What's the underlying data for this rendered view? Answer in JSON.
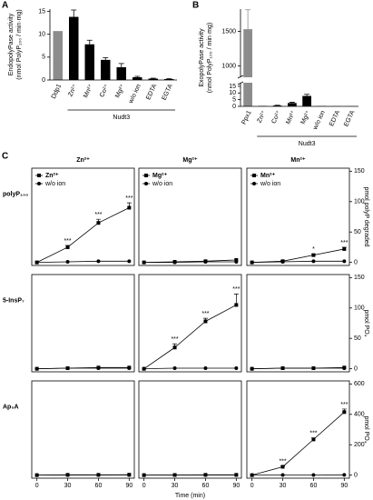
{
  "chart_data": [
    {
      "type": "bar",
      "panel": "A",
      "ylabel": [
        "EndopolyPase activity",
        "(nmol PolyP₁₀₀ / min·mg)"
      ],
      "categories": [
        "Ddp1",
        "Zn²⁺",
        "Mn²⁺",
        "Co²⁺",
        "Mg²⁺",
        "w/o ion",
        "EDTA",
        "EGTA"
      ],
      "values": [
        10.7,
        13.8,
        7.8,
        4.4,
        2.8,
        0.6,
        0.3,
        0.2
      ],
      "errors": [
        null,
        1.5,
        0.9,
        0.5,
        0.8,
        0.2,
        0.1,
        0.1
      ],
      "colors": [
        "#8c8c8c",
        "#000000",
        "#000000",
        "#000000",
        "#000000",
        "#000000",
        "#000000",
        "#000000"
      ],
      "group": {
        "label": "Nudt3",
        "from": 1,
        "to": 7
      },
      "ylim": [
        0,
        15.5
      ],
      "yticks": [
        0,
        5,
        10,
        15
      ]
    },
    {
      "type": "broken-bar",
      "panel": "B",
      "ylabel": [
        "ExopolyPase activity",
        "(nmol PolyP₁₀₀ / min·mg)"
      ],
      "categories": [
        "Ppx1",
        "Zn²⁺",
        "Co²⁺",
        "Mn²⁺",
        "Mg²⁺",
        "w/o ion",
        "EDTA",
        "EGTA"
      ],
      "values": [
        1530,
        0.3,
        0.6,
        2.5,
        7.8,
        0.2,
        0.1,
        0.1
      ],
      "errors": [
        280,
        null,
        0.2,
        0.6,
        1.2,
        null,
        null,
        null
      ],
      "colors": [
        "#8c8c8c",
        "#000000",
        "#000000",
        "#000000",
        "#000000",
        "#000000",
        "#000000",
        "#000000"
      ],
      "group": {
        "label": "Nudt3",
        "from": 1,
        "to": 7
      },
      "ylim": [
        0,
        1820
      ],
      "axis_break": [
        17,
        850
      ],
      "yticks": [
        0,
        5,
        10,
        15,
        1000,
        1500
      ]
    },
    {
      "type": "line",
      "panel": "C",
      "row": 0,
      "col": 0,
      "title": "Zn²⁺",
      "row_label": "polyP₁₀₀",
      "legend": true,
      "x": [
        0,
        30,
        60,
        90
      ],
      "xlim": [
        -5,
        95
      ],
      "ylim": [
        -5,
        155
      ],
      "series": [
        {
          "name": "Zn²⁺",
          "color": "#000000",
          "marker": "square",
          "values": [
            0,
            25,
            65,
            90
          ],
          "errors": [
            0,
            3,
            6,
            8
          ],
          "significance": [
            null,
            "***",
            "***",
            "***"
          ]
        },
        {
          "name": "w/o ion",
          "color": "#000000",
          "marker": "circle",
          "values": [
            0,
            1,
            2,
            2
          ]
        }
      ]
    },
    {
      "type": "line",
      "row": 0,
      "col": 1,
      "title": "Mg²⁺",
      "legend": true,
      "x": [
        0,
        30,
        60,
        90
      ],
      "xlim": [
        -5,
        95
      ],
      "ylim": [
        -5,
        155
      ],
      "series": [
        {
          "name": "Mg²⁺",
          "color": "#000000",
          "marker": "square",
          "values": [
            0,
            1,
            2,
            4
          ]
        },
        {
          "name": "w/o ion",
          "color": "#000000",
          "marker": "circle",
          "values": [
            0,
            0,
            1,
            1
          ]
        }
      ]
    },
    {
      "type": "line",
      "row": 0,
      "col": 2,
      "title": "Mn²⁺",
      "legend": true,
      "ylabel": "pmol polyP degraded",
      "x": [
        0,
        30,
        60,
        90
      ],
      "xlim": [
        -5,
        95
      ],
      "ylim": [
        -5,
        155
      ],
      "yticks": [
        0,
        50,
        100,
        150
      ],
      "series": [
        {
          "name": "Mn²⁺",
          "color": "#000000",
          "marker": "square",
          "values": [
            0,
            2,
            12,
            22
          ],
          "errors": [
            0,
            1,
            2,
            3
          ],
          "significance": [
            null,
            null,
            "*",
            "***"
          ]
        },
        {
          "name": "w/o ion",
          "color": "#000000",
          "marker": "circle",
          "values": [
            0,
            1,
            2,
            2
          ]
        }
      ]
    },
    {
      "type": "line",
      "row": 1,
      "col": 0,
      "row_label": "5-InsP₇",
      "legend": false,
      "x": [
        0,
        30,
        60,
        90
      ],
      "xlim": [
        -5,
        95
      ],
      "ylim": [
        -5,
        155
      ],
      "series": [
        {
          "color": "#000000",
          "marker": "square",
          "values": [
            0,
            1,
            2,
            2
          ]
        },
        {
          "color": "#000000",
          "marker": "circle",
          "values": [
            0,
            1,
            1,
            1
          ]
        }
      ]
    },
    {
      "type": "line",
      "row": 1,
      "col": 1,
      "legend": false,
      "x": [
        0,
        30,
        60,
        90
      ],
      "xlim": [
        -5,
        95
      ],
      "ylim": [
        -5,
        155
      ],
      "series": [
        {
          "color": "#000000",
          "marker": "square",
          "values": [
            0,
            35,
            78,
            105
          ],
          "errors": [
            0,
            6,
            5,
            18
          ],
          "significance": [
            null,
            "***",
            "***",
            "***"
          ]
        },
        {
          "color": "#000000",
          "marker": "circle",
          "values": [
            0,
            1,
            1,
            1
          ]
        }
      ]
    },
    {
      "type": "line",
      "row": 1,
      "col": 2,
      "legend": false,
      "ylabel": "pmol PO₄",
      "x": [
        0,
        30,
        60,
        90
      ],
      "xlim": [
        -5,
        95
      ],
      "ylim": [
        -5,
        155
      ],
      "yticks": [
        0,
        50,
        100,
        150
      ],
      "series": [
        {
          "color": "#000000",
          "marker": "square",
          "values": [
            0,
            1,
            1,
            2
          ]
        },
        {
          "color": "#000000",
          "marker": "circle",
          "values": [
            0,
            1,
            1,
            1
          ]
        }
      ]
    },
    {
      "type": "line",
      "row": 2,
      "col": 0,
      "row_label": "Ap₅A",
      "legend": false,
      "x": [
        0,
        30,
        60,
        90
      ],
      "xlim": [
        -5,
        95
      ],
      "ylim": [
        -20,
        620
      ],
      "xticks": [
        0,
        30,
        60,
        90
      ],
      "series": [
        {
          "color": "#000000",
          "marker": "square",
          "values": [
            0,
            2,
            2,
            3
          ]
        },
        {
          "color": "#000000",
          "marker": "circle",
          "values": [
            0,
            1,
            1,
            1
          ]
        }
      ]
    },
    {
      "type": "line",
      "row": 2,
      "col": 1,
      "legend": false,
      "xlabel": "Time (min)",
      "x": [
        0,
        30,
        60,
        90
      ],
      "xlim": [
        -5,
        95
      ],
      "ylim": [
        -20,
        620
      ],
      "xticks": [
        0,
        30,
        60,
        90
      ],
      "series": [
        {
          "color": "#000000",
          "marker": "square",
          "values": [
            0,
            1,
            2,
            2
          ]
        },
        {
          "color": "#000000",
          "marker": "circle",
          "values": [
            0,
            1,
            1,
            1
          ]
        }
      ]
    },
    {
      "type": "line",
      "row": 2,
      "col": 2,
      "legend": false,
      "ylabel": "pmol PO₄",
      "x": [
        0,
        30,
        60,
        90
      ],
      "xlim": [
        -5,
        95
      ],
      "ylim": [
        -20,
        620
      ],
      "yticks": [
        0,
        200,
        400,
        600
      ],
      "xticks": [
        0,
        30,
        60,
        90
      ],
      "series": [
        {
          "color": "#000000",
          "marker": "square",
          "values": [
            0,
            55,
            235,
            415
          ],
          "errors": [
            0,
            5,
            10,
            20
          ],
          "significance": [
            null,
            "***",
            "***",
            "***"
          ]
        },
        {
          "color": "#000000",
          "marker": "circle",
          "values": [
            0,
            1,
            1,
            2
          ]
        }
      ]
    }
  ]
}
